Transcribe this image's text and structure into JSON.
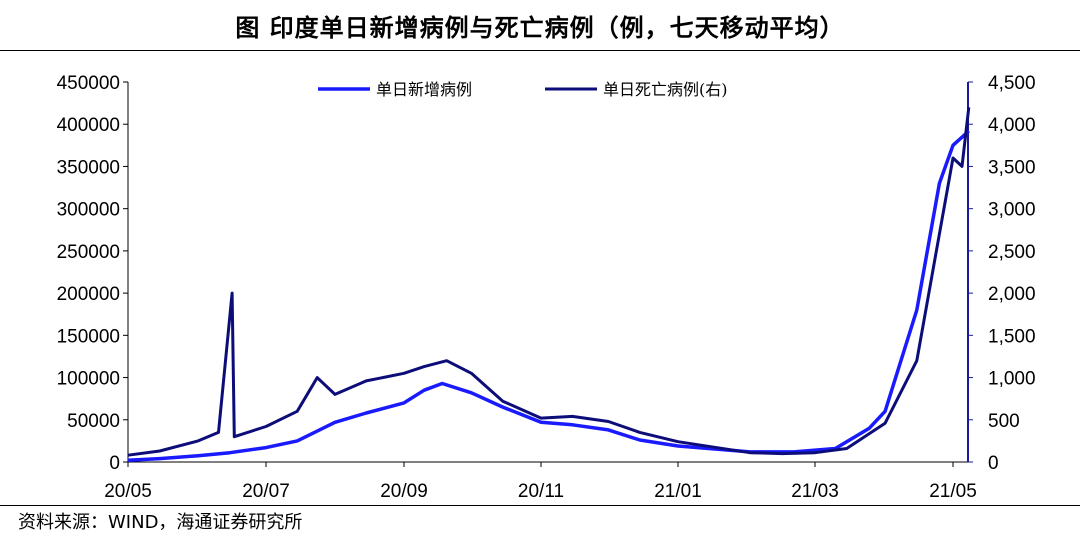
{
  "title": "图  印度单日新增病例与死亡病例（例，七天移动平均）",
  "source": "资料来源：WIND，海通证券研究所",
  "chart_data": {
    "type": "line",
    "x": [
      "20/05-01",
      "20/06-01",
      "20/07-01",
      "20/08-01",
      "20/09-01",
      "20/09-15",
      "20/10-01",
      "20/11-01",
      "20/12-01",
      "21/01-01",
      "21/02-01",
      "21/02-15",
      "21/03-01",
      "21/03-15",
      "21/04-01",
      "21/04-15",
      "21/05-01",
      "21/05-08"
    ],
    "x_ticks": [
      "20/05",
      "20/07",
      "20/09",
      "20/11",
      "21/01",
      "21/03",
      "21/05"
    ],
    "left_y_ticks": [
      "0",
      "50000",
      "100000",
      "150000",
      "200000",
      "250000",
      "300000",
      "350000",
      "400000",
      "450000"
    ],
    "right_y_ticks": [
      "0",
      "500",
      "1,000",
      "1,500",
      "2,000",
      "2,500",
      "3,000",
      "3,500",
      "4,000",
      "4,500"
    ],
    "ylim_left": [
      0,
      450000
    ],
    "ylim_right": [
      0,
      4500
    ],
    "series": [
      {
        "name": "单日新增病例",
        "axis": "left",
        "color": "#1a1aff",
        "points": [
          [
            "2020-05-01",
            2000
          ],
          [
            "2020-05-15",
            4000
          ],
          [
            "2020-06-01",
            7500
          ],
          [
            "2020-06-15",
            11000
          ],
          [
            "2020-07-01",
            17000
          ],
          [
            "2020-07-15",
            25000
          ],
          [
            "2020-08-01",
            47000
          ],
          [
            "2020-08-15",
            58000
          ],
          [
            "2020-09-01",
            70000
          ],
          [
            "2020-09-10",
            85000
          ],
          [
            "2020-09-18",
            93000
          ],
          [
            "2020-10-01",
            82000
          ],
          [
            "2020-10-15",
            65000
          ],
          [
            "2020-11-01",
            47000
          ],
          [
            "2020-11-15",
            44000
          ],
          [
            "2020-12-01",
            38000
          ],
          [
            "2020-12-15",
            26000
          ],
          [
            "2021-01-01",
            19000
          ],
          [
            "2021-02-01",
            12000
          ],
          [
            "2021-02-20",
            12000
          ],
          [
            "2021-03-10",
            16000
          ],
          [
            "2021-03-25",
            40000
          ],
          [
            "2021-04-01",
            60000
          ],
          [
            "2021-04-15",
            180000
          ],
          [
            "2021-04-25",
            330000
          ],
          [
            "2021-05-01",
            375000
          ],
          [
            "2021-05-08",
            392000
          ]
        ]
      },
      {
        "name": "单日死亡病例(右)",
        "axis": "right",
        "color": "#0d0d7a",
        "points": [
          [
            "2020-05-01",
            80
          ],
          [
            "2020-05-15",
            130
          ],
          [
            "2020-06-01",
            250
          ],
          [
            "2020-06-10",
            350
          ],
          [
            "2020-06-16",
            2000
          ],
          [
            "2020-06-17",
            300
          ],
          [
            "2020-07-01",
            420
          ],
          [
            "2020-07-15",
            600
          ],
          [
            "2020-07-24",
            1000
          ],
          [
            "2020-08-01",
            800
          ],
          [
            "2020-08-15",
            960
          ],
          [
            "2020-09-01",
            1050
          ],
          [
            "2020-09-10",
            1130
          ],
          [
            "2020-09-20",
            1200
          ],
          [
            "2020-10-01",
            1050
          ],
          [
            "2020-10-15",
            720
          ],
          [
            "2020-11-01",
            520
          ],
          [
            "2020-11-15",
            540
          ],
          [
            "2020-12-01",
            480
          ],
          [
            "2020-12-15",
            350
          ],
          [
            "2021-01-01",
            240
          ],
          [
            "2021-02-01",
            110
          ],
          [
            "2021-02-15",
            100
          ],
          [
            "2021-03-01",
            110
          ],
          [
            "2021-03-15",
            160
          ],
          [
            "2021-04-01",
            460
          ],
          [
            "2021-04-15",
            1200
          ],
          [
            "2021-04-25",
            2700
          ],
          [
            "2021-05-01",
            3600
          ],
          [
            "2021-05-05",
            3500
          ],
          [
            "2021-05-08",
            4200
          ]
        ]
      }
    ],
    "legend_placement": "top-center",
    "grid": false
  }
}
